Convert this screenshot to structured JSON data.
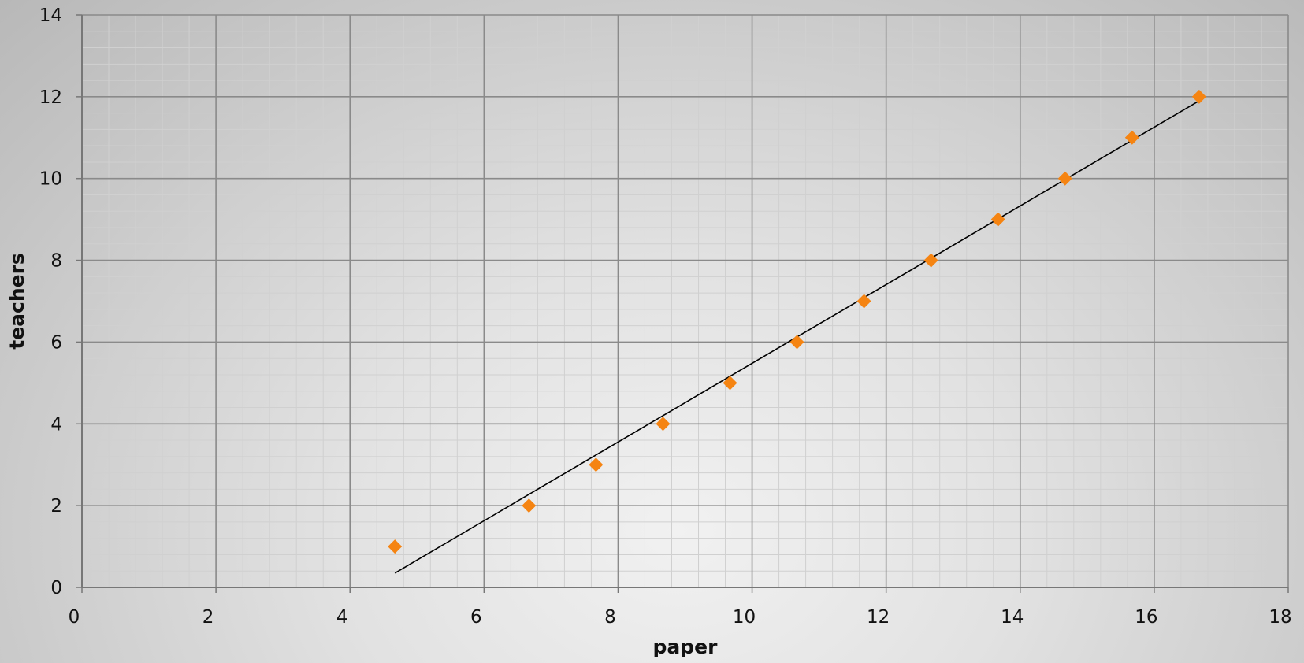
{
  "chart_data": {
    "type": "scatter",
    "title": "",
    "xlabel": "paper",
    "ylabel": "teachers",
    "xlim": [
      0,
      18
    ],
    "ylim": [
      0,
      14
    ],
    "x_ticks": [
      "0",
      "2",
      "4",
      "6",
      "8",
      "10",
      "12",
      "14",
      "16",
      "18"
    ],
    "y_ticks": [
      "0",
      "2",
      "4",
      "6",
      "8",
      "10",
      "12",
      "14"
    ],
    "grid": true,
    "legend": "none",
    "series": [
      {
        "marker": "diamond",
        "color": "#f58412",
        "points": [
          {
            "x": 4.67,
            "y": 1
          },
          {
            "x": 6.67,
            "y": 2
          },
          {
            "x": 7.67,
            "y": 3
          },
          {
            "x": 8.67,
            "y": 4
          },
          {
            "x": 9.67,
            "y": 5
          },
          {
            "x": 10.67,
            "y": 6
          },
          {
            "x": 11.67,
            "y": 7
          },
          {
            "x": 12.67,
            "y": 8
          },
          {
            "x": 13.67,
            "y": 9
          },
          {
            "x": 14.67,
            "y": 10
          },
          {
            "x": 15.67,
            "y": 11
          },
          {
            "x": 16.67,
            "y": 12
          }
        ]
      }
    ],
    "trendline": {
      "type": "linear",
      "color": "#000000",
      "x_start": 4.67,
      "y_start": 0.35,
      "x_end": 16.67,
      "y_end": 11.9
    }
  }
}
